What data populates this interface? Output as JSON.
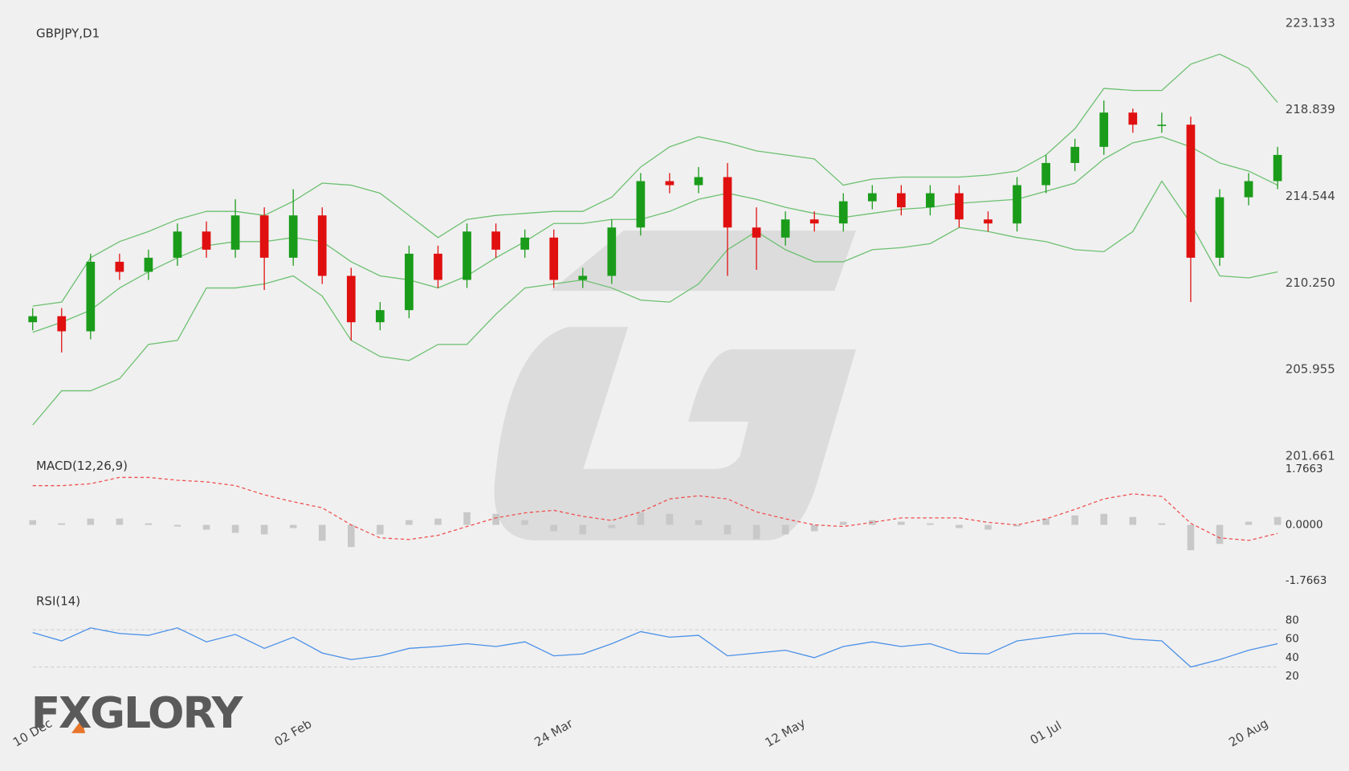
{
  "chart_data": [
    {
      "type": "candlestick",
      "title": "GBPJPY,D1",
      "categories": [
        "10 Dec",
        null,
        null,
        null,
        null,
        null,
        null,
        null,
        null,
        "02 Feb",
        null,
        null,
        null,
        null,
        null,
        null,
        null,
        null,
        "24 Mar",
        null,
        null,
        null,
        null,
        null,
        null,
        null,
        "12 May",
        null,
        null,
        null,
        null,
        null,
        null,
        null,
        null,
        "01 Jul",
        null,
        null,
        null,
        null,
        null,
        null,
        "20 Aug",
        null
      ],
      "open": [
        208.3,
        208.6,
        207.85,
        211.3,
        210.8,
        211.5,
        212.8,
        211.9,
        213.6,
        211.5,
        213.6,
        210.6,
        208.3,
        208.9,
        211.7,
        210.4,
        212.8,
        211.9,
        212.5,
        210.4,
        210.6,
        213.0,
        215.3,
        215.1,
        215.5,
        213.0,
        212.5,
        213.4,
        213.2,
        214.3,
        214.7,
        214.0,
        214.7,
        213.4,
        213.2,
        215.1,
        216.2,
        217.0,
        218.7,
        218.1,
        218.1,
        211.5,
        214.5,
        215.3
      ],
      "high": [
        209.0,
        209.0,
        211.7,
        211.7,
        211.9,
        213.2,
        213.3,
        214.4,
        214.0,
        214.9,
        214.0,
        211.0,
        209.3,
        212.1,
        212.1,
        213.2,
        213.2,
        212.9,
        212.9,
        211.0,
        213.4,
        215.7,
        215.7,
        216.0,
        216.2,
        214.0,
        213.8,
        213.8,
        214.7,
        215.1,
        215.1,
        215.1,
        215.1,
        213.8,
        215.5,
        216.6,
        217.4,
        219.3,
        218.9,
        218.7,
        218.5,
        214.9,
        215.7,
        217.0
      ],
      "low": [
        207.9,
        206.8,
        207.45,
        210.4,
        210.4,
        211.1,
        211.5,
        211.5,
        209.9,
        211.1,
        210.2,
        207.4,
        207.9,
        208.5,
        210.0,
        210.0,
        211.5,
        211.5,
        210.0,
        210.0,
        210.2,
        212.6,
        214.7,
        214.7,
        210.6,
        210.9,
        212.1,
        212.8,
        212.8,
        213.9,
        213.6,
        213.6,
        213.0,
        212.8,
        212.8,
        214.7,
        215.8,
        216.6,
        217.7,
        217.7,
        209.3,
        211.1,
        214.1,
        214.9
      ],
      "close": [
        208.6,
        207.85,
        211.3,
        210.8,
        211.5,
        212.8,
        211.9,
        213.6,
        211.5,
        213.6,
        210.6,
        208.3,
        208.9,
        211.7,
        210.4,
        212.8,
        211.9,
        212.5,
        210.4,
        210.6,
        213.0,
        215.3,
        215.1,
        215.5,
        213.0,
        212.5,
        213.4,
        213.2,
        214.3,
        214.7,
        214.0,
        214.7,
        213.4,
        213.2,
        215.1,
        216.2,
        217.0,
        218.7,
        218.1,
        218.1,
        211.5,
        214.5,
        215.3,
        216.6
      ],
      "up_color": "#1a9c1a",
      "down_color": "#e01010",
      "bands": {
        "color": "#6cc070",
        "upper": [
          209.1,
          209.3,
          211.5,
          212.3,
          212.8,
          213.4,
          213.8,
          213.8,
          213.6,
          214.3,
          215.2,
          215.1,
          214.7,
          213.6,
          212.5,
          213.4,
          213.6,
          213.7,
          213.8,
          213.8,
          214.5,
          216.0,
          217.0,
          217.5,
          217.2,
          216.8,
          216.6,
          216.4,
          215.1,
          215.4,
          215.5,
          215.5,
          215.5,
          215.6,
          215.8,
          216.6,
          217.9,
          219.9,
          219.8,
          219.8,
          221.1,
          221.6,
          220.9,
          219.2
        ],
        "middle": [
          207.8,
          208.3,
          208.9,
          210.0,
          210.8,
          211.5,
          212.1,
          212.3,
          212.3,
          212.5,
          212.3,
          211.3,
          210.6,
          210.4,
          210.0,
          210.6,
          211.5,
          212.3,
          213.2,
          213.2,
          213.4,
          213.4,
          213.8,
          214.4,
          214.7,
          214.4,
          214.0,
          213.7,
          213.5,
          213.7,
          213.9,
          214.0,
          214.2,
          214.3,
          214.4,
          214.8,
          215.2,
          216.4,
          217.2,
          217.5,
          217.0,
          216.2,
          215.8,
          215.1
        ],
        "lower": [
          203.2,
          204.9,
          204.9,
          205.5,
          207.2,
          207.4,
          210.0,
          210.0,
          210.2,
          210.6,
          209.6,
          207.4,
          206.6,
          206.4,
          207.2,
          207.2,
          208.7,
          210.0,
          210.2,
          210.4,
          210.0,
          209.4,
          209.3,
          210.2,
          211.9,
          212.8,
          211.9,
          211.3,
          211.3,
          211.9,
          212.0,
          212.2,
          213.0,
          212.8,
          212.5,
          212.3,
          211.9,
          211.8,
          212.8,
          215.3,
          213.2,
          210.6,
          210.5,
          210.8
        ]
      },
      "ylim": [
        201.661,
        223.133
      ],
      "yticks": [
        201.661,
        205.955,
        {
          "value": 210.25,
          "label": "210.250"
        },
        214.544,
        218.839,
        223.133
      ]
    },
    {
      "type": "macd",
      "title": "MACD(12,26,9)",
      "signal": [
        1.24,
        1.24,
        1.3,
        1.5,
        1.5,
        1.41,
        1.36,
        1.24,
        0.95,
        0.73,
        0.54,
        0,
        -0.41,
        -0.46,
        -0.33,
        -0.05,
        0.22,
        0.38,
        0.46,
        0.27,
        0.14,
        0.41,
        0.82,
        0.92,
        0.82,
        0.41,
        0.19,
        0,
        -0.05,
        0.08,
        0.22,
        0.22,
        0.22,
        0.08,
        0,
        0.19,
        0.49,
        0.82,
        0.98,
        0.9,
        0.05,
        -0.41,
        -0.49,
        -0.27
      ],
      "histogram": [
        0.15,
        0.05,
        0.2,
        0.2,
        0.05,
        -0.05,
        -0.15,
        -0.25,
        -0.3,
        -0.1,
        -0.5,
        -0.7,
        -0.3,
        0.15,
        0.2,
        0.4,
        0.35,
        0.15,
        -0.2,
        -0.3,
        -0.1,
        0.4,
        0.35,
        0.15,
        -0.3,
        -0.45,
        -0.3,
        -0.2,
        0.1,
        0.15,
        0.1,
        0.05,
        -0.1,
        -0.15,
        -0.05,
        0.2,
        0.3,
        0.35,
        0.25,
        0.05,
        -0.8,
        -0.6,
        0.1,
        0.25
      ],
      "signal_color": "#f05050",
      "histogram_color": "#c8c8c8",
      "ylim": [
        -1.7663,
        1.7663
      ],
      "yticks": [
        -1.7663,
        {
          "value": 0,
          "label": "0.0000"
        },
        1.7663
      ]
    },
    {
      "type": "rsi",
      "title": "RSI(14)",
      "values": [
        67,
        58,
        72,
        66,
        64,
        72,
        57,
        65,
        50,
        62,
        45,
        38,
        42,
        50,
        52,
        55,
        52,
        57,
        42,
        44,
        55,
        68,
        62,
        64,
        42,
        45,
        48,
        40,
        52,
        57,
        52,
        55,
        45,
        44,
        58,
        62,
        66,
        66,
        60,
        58,
        30,
        38,
        48,
        55
      ],
      "color": "#4a90e8",
      "levels": [
        30,
        70
      ],
      "ylim": [
        15,
        85
      ],
      "yticks": [
        20,
        40,
        60,
        80
      ]
    }
  ],
  "brand": "FXGLORY"
}
